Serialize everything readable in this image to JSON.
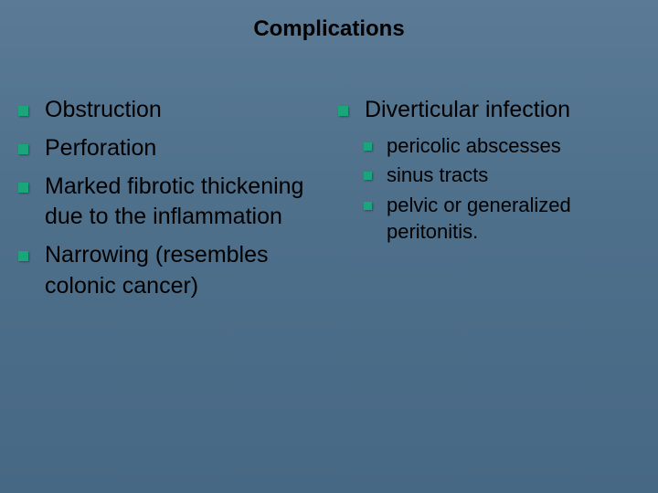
{
  "slide": {
    "title": "Complications",
    "background_gradient": [
      "#5a7a95",
      "#4f708b",
      "#476884"
    ],
    "bullet_color": "#1aa57a",
    "text_color": "#000000",
    "title_fontsize": 24,
    "body_fontsize": 25,
    "sub_fontsize": 22
  },
  "left_column": {
    "items": [
      "Obstruction",
      "Perforation",
      "Marked fibrotic thickening due to the inflammation",
      "Narrowing (resembles colonic cancer)"
    ]
  },
  "right_column": {
    "item": "Diverticular infection",
    "subitems": [
      "pericolic abscesses",
      "sinus tracts",
      "pelvic or generalized peritonitis."
    ]
  }
}
